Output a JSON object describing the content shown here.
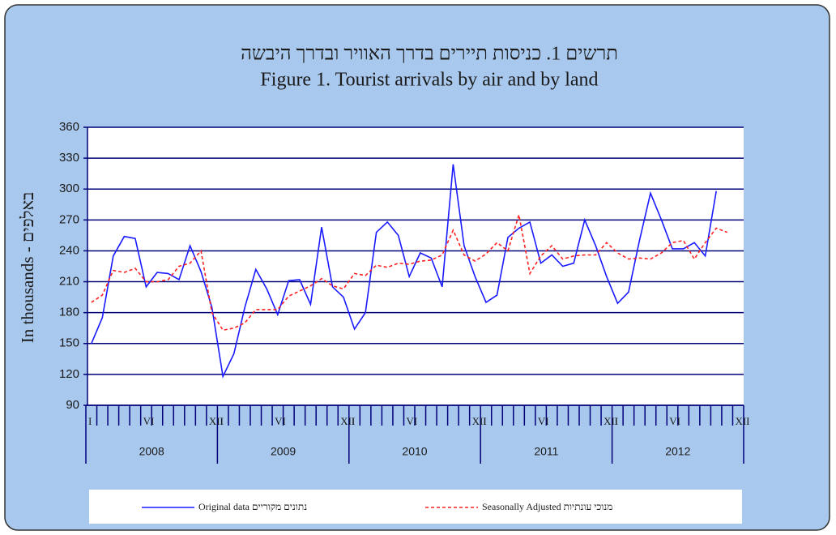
{
  "chart_data": {
    "type": "line",
    "title": "תרשים 1. כניסות תיירים בדרך האוויר ובדרך היבשה",
    "subtitle": "Figure 1. Tourist arrivals by air and by land",
    "y_label": "In thousands - באלפים",
    "categories": [
      "I",
      null,
      null,
      null,
      null,
      "VI",
      null,
      null,
      null,
      null,
      null,
      "XII",
      "I",
      null,
      null,
      null,
      null,
      "VI",
      null,
      null,
      null,
      null,
      null,
      "XII",
      "I",
      null,
      null,
      null,
      null,
      "VI",
      null,
      null,
      null,
      null,
      null,
      "XII",
      "I",
      null,
      null,
      null,
      null,
      "VI",
      null,
      null,
      null,
      null,
      null,
      "XII",
      "I",
      null,
      null,
      null,
      null,
      "VI",
      null,
      null,
      null,
      null,
      null,
      "XII"
    ],
    "years": [
      "2008",
      "2009",
      "2010",
      "2011",
      "2012"
    ],
    "ylim": [
      90,
      360
    ],
    "yticks": [
      90,
      120,
      150,
      180,
      210,
      240,
      270,
      300,
      330,
      360
    ],
    "grid": true,
    "series": [
      {
        "name": "Original data נתונים מקוריים",
        "color": "#1a1aff",
        "line_style": "solid",
        "values": [
          150,
          175,
          235,
          254,
          252,
          205,
          219,
          218,
          212,
          245,
          220,
          185,
          118,
          140,
          185,
          222,
          203,
          178,
          211,
          212,
          188,
          263,
          205,
          195,
          164,
          180,
          258,
          268,
          255,
          215,
          238,
          233,
          205,
          324,
          245,
          215,
          190,
          197,
          253,
          262,
          268,
          228,
          236,
          225,
          228,
          270,
          245,
          215,
          189,
          200,
          250,
          296,
          270,
          242,
          242,
          248,
          235,
          298,
          null,
          null
        ]
      },
      {
        "name": "Seasonally Adjusted מנוכי עונתיות",
        "color": "#ff2020",
        "line_style": "dashed",
        "values": [
          190,
          197,
          221,
          219,
          223,
          210,
          210,
          212,
          225,
          228,
          240,
          180,
          163,
          165,
          170,
          183,
          183,
          183,
          196,
          201,
          206,
          213,
          206,
          203,
          218,
          216,
          226,
          224,
          228,
          227,
          230,
          231,
          236,
          260,
          236,
          230,
          237,
          248,
          240,
          275,
          218,
          235,
          245,
          232,
          235,
          236,
          236,
          248,
          238,
          232,
          233,
          232,
          238,
          248,
          250,
          232,
          248,
          262,
          258,
          null
        ]
      }
    ]
  }
}
